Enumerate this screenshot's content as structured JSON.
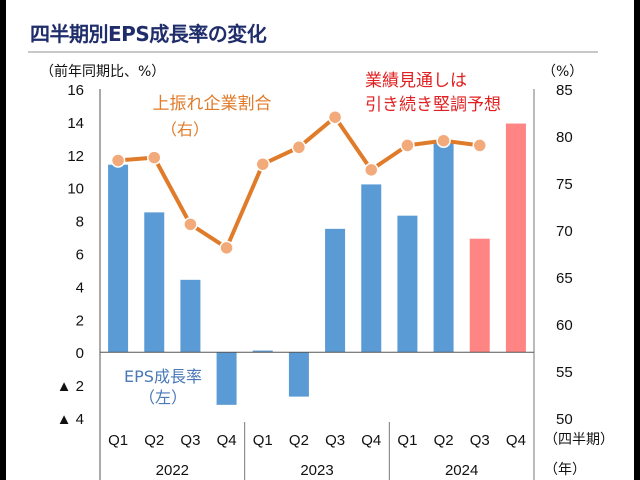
{
  "chart_data": {
    "type": "bar+line",
    "title": "四半期別EPS成長率の変化",
    "left_axis": {
      "unit_label": "（前年同期比、%）",
      "range": [
        -4,
        16
      ],
      "ticks": [
        "16",
        "14",
        "12",
        "10",
        "8",
        "6",
        "4",
        "2",
        "0",
        "▲ 2",
        "▲ 4"
      ],
      "tick_values": [
        16,
        14,
        12,
        10,
        8,
        6,
        4,
        2,
        0,
        -2,
        -4
      ]
    },
    "right_axis": {
      "unit_label": "（%）",
      "range": [
        50,
        85
      ],
      "ticks": [
        "85",
        "80",
        "75",
        "70",
        "65",
        "60",
        "55",
        "50"
      ],
      "tick_values": [
        85,
        80,
        75,
        70,
        65,
        60,
        55,
        50
      ]
    },
    "categories": [
      "Q1",
      "Q2",
      "Q3",
      "Q4",
      "Q1",
      "Q2",
      "Q3",
      "Q4",
      "Q1",
      "Q2",
      "Q3",
      "Q4"
    ],
    "years": [
      "2022",
      "2023",
      "2024"
    ],
    "x_unit_quarter": "（四半期）",
    "x_unit_year": "（年）",
    "series": [
      {
        "name": "EPS成長率",
        "axis": "left",
        "type": "bar",
        "label_line1": "EPS成長率",
        "label_line2": "（左）",
        "values": [
          11.4,
          8.5,
          4.4,
          -3.2,
          0.1,
          -2.7,
          7.5,
          10.2,
          8.3,
          12.7,
          6.9,
          13.9
        ],
        "forecast": [
          false,
          false,
          false,
          false,
          false,
          false,
          false,
          false,
          false,
          false,
          true,
          true
        ],
        "color": "#5b9bd5",
        "forecast_color": "#ff8585"
      },
      {
        "name": "上振れ企業割合",
        "axis": "right",
        "type": "line",
        "label_line1": "上振れ企業割合",
        "label_line2": "（右）",
        "values": [
          77.4,
          77.7,
          70.6,
          68.1,
          77.0,
          78.8,
          82.0,
          76.4,
          79.0,
          79.5,
          79.0,
          null
        ],
        "color": "#e07b2a",
        "marker_color": "#f2aa7a"
      }
    ],
    "annotation": {
      "line1": "業績見通しは",
      "line2": "引き続き堅調予想",
      "color": "#e02020"
    }
  }
}
